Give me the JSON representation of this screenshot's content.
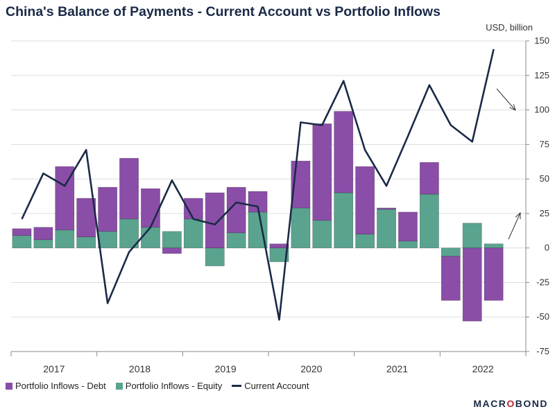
{
  "title": "China's Balance of Payments - Current Account vs Portfolio Inflows",
  "unit_label": "USD, billion",
  "brand": {
    "prefix": "MACR",
    "mark": "O",
    "suffix": "BOND"
  },
  "colors": {
    "debt": "#8b4ea8",
    "equity": "#5aa38f",
    "current": "#1a2a47",
    "grid": "#dddddd",
    "axis": "#888888"
  },
  "chart_data": {
    "type": "bar+line",
    "title": "China's Balance of Payments - Current Account vs Portfolio Inflows",
    "ylabel": "USD, billion",
    "ylim": [
      -75,
      150
    ],
    "yticks": [
      150,
      125,
      100,
      75,
      50,
      25,
      0,
      -25,
      -50,
      -75
    ],
    "grid": true,
    "y_axis_side": "right",
    "legend_position": "bottom-left",
    "years": [
      "2017",
      "2018",
      "2019",
      "2020",
      "2021",
      "2022"
    ],
    "quarters": [
      "2017Q1",
      "2017Q2",
      "2017Q3",
      "2017Q4",
      "2018Q1",
      "2018Q2",
      "2018Q3",
      "2018Q4",
      "2019Q1",
      "2019Q2",
      "2019Q3",
      "2019Q4",
      "2020Q1",
      "2020Q2",
      "2020Q3",
      "2020Q4",
      "2021Q1",
      "2021Q2",
      "2021Q3",
      "2021Q4",
      "2022Q1",
      "2022Q2",
      "2022Q3",
      "2022Q4"
    ],
    "series": [
      {
        "name": "Portfolio Inflows - Debt",
        "type": "bar",
        "stacked": true,
        "values": [
          5,
          9,
          46,
          28,
          32,
          44,
          28,
          0,
          15,
          40,
          33,
          15,
          3,
          34,
          70,
          59,
          49,
          1,
          21,
          23,
          -32,
          -53,
          -38,
          null
        ]
      },
      {
        "name": "Portfolio Inflows - Equity",
        "type": "bar",
        "stacked": true,
        "values": [
          9,
          6,
          13,
          8,
          12,
          21,
          15,
          12,
          21,
          -13,
          11,
          26,
          -10,
          29,
          20,
          40,
          10,
          28,
          5,
          39,
          -6,
          18,
          3,
          null
        ]
      },
      {
        "name": "Current Account",
        "type": "line",
        "values": [
          21,
          54,
          45,
          71,
          -40,
          -3,
          15,
          49,
          21,
          17,
          33,
          30,
          -52,
          91,
          89,
          121,
          71,
          45,
          81,
          118,
          89,
          77,
          144,
          null
        ],
        "derived_negative_debt": [
          0,
          0,
          0,
          0,
          0,
          0,
          0,
          -4,
          0,
          0,
          0,
          0,
          0,
          0,
          0,
          0,
          0,
          0,
          0,
          0,
          0,
          0,
          0,
          null
        ]
      }
    ]
  },
  "legend": [
    {
      "label": "Portfolio Inflows - Debt",
      "kind": "bar",
      "color": "#8b4ea8"
    },
    {
      "label": "Portfolio Inflows - Equity",
      "kind": "bar",
      "color": "#5aa38f"
    },
    {
      "label": "Current Account",
      "kind": "line",
      "color": "#1a2a47"
    }
  ]
}
